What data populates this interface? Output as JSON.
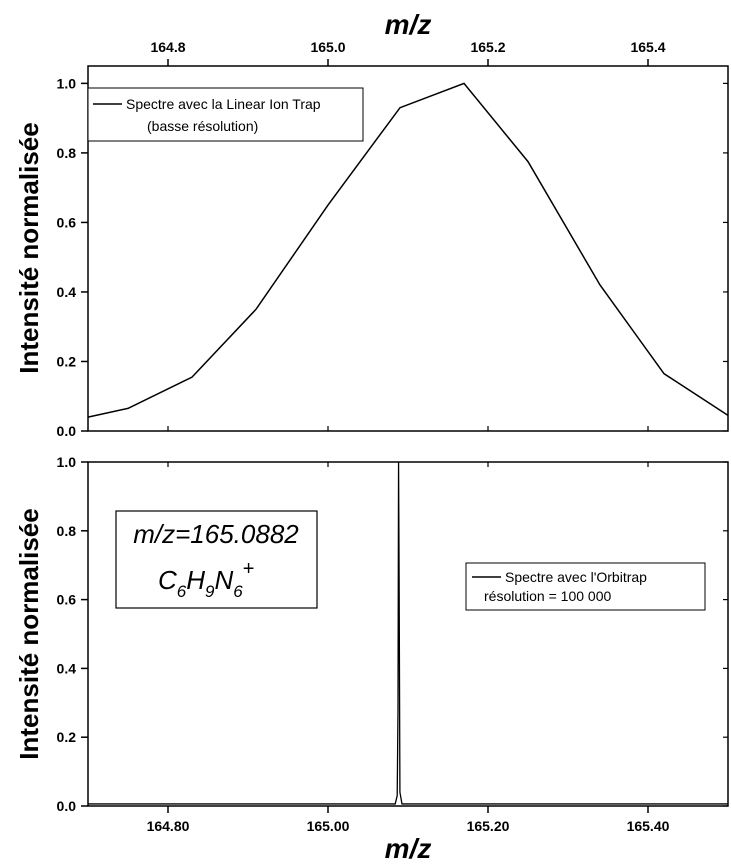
{
  "chart_data": [
    {
      "type": "line",
      "x_axis": {
        "label": "m/z",
        "position": "top",
        "range": [
          164.7,
          165.5
        ],
        "ticks": [
          "164.8",
          "165.0",
          "165.2",
          "165.4"
        ],
        "tick_values": [
          164.8,
          165.0,
          165.2,
          165.4
        ]
      },
      "y_axis": {
        "label": "Intensité normalisée",
        "range": [
          0,
          1.05
        ],
        "ticks": [
          "0.0",
          "0.2",
          "0.4",
          "0.6",
          "0.8",
          "1.0"
        ],
        "tick_values": [
          0.0,
          0.2,
          0.4,
          0.6,
          0.8,
          1.0
        ]
      },
      "series": [
        {
          "x": [
            164.7,
            164.75,
            164.83,
            164.91,
            165.0,
            165.09,
            165.17,
            165.25,
            165.34,
            165.42,
            165.5
          ],
          "y": [
            0.04,
            0.065,
            0.155,
            0.35,
            0.65,
            0.93,
            1.0,
            0.775,
            0.42,
            0.165,
            0.045
          ]
        }
      ],
      "legend": {
        "placement": "top-left",
        "line1": "Spectre avec la Linear Ion Trap",
        "line2": "(basse résolution)"
      },
      "grid": false
    },
    {
      "type": "line",
      "x_axis": {
        "label": "m/z",
        "position": "bottom",
        "range": [
          164.7,
          165.5
        ],
        "ticks": [
          "164.80",
          "165.00",
          "165.20",
          "165.40"
        ],
        "tick_values": [
          164.8,
          165.0,
          165.2,
          165.4
        ]
      },
      "y_axis": {
        "label": "Intensité normalisée",
        "range": [
          0,
          1.0
        ],
        "ticks": [
          "0.0",
          "0.2",
          "0.4",
          "0.6",
          "0.8",
          "1.0"
        ],
        "tick_values": [
          0.0,
          0.2,
          0.4,
          0.6,
          0.8,
          1.0
        ]
      },
      "series": [
        {
          "x": [
            164.7,
            165.0,
            165.084,
            165.0865,
            165.0875,
            165.0882,
            165.0889,
            165.0899,
            165.0925,
            165.5
          ],
          "y": [
            0.006,
            0.006,
            0.006,
            0.03,
            0.28,
            1.0,
            0.66,
            0.04,
            0.006,
            0.006
          ]
        }
      ],
      "legend": {
        "placement": "right",
        "line1": "Spectre avec l'Orbitrap",
        "line2": "résolution = 100 000"
      },
      "annotation": {
        "line1": "m/z=165.0882",
        "formula": "C6H9N6+"
      },
      "grid": false
    }
  ]
}
